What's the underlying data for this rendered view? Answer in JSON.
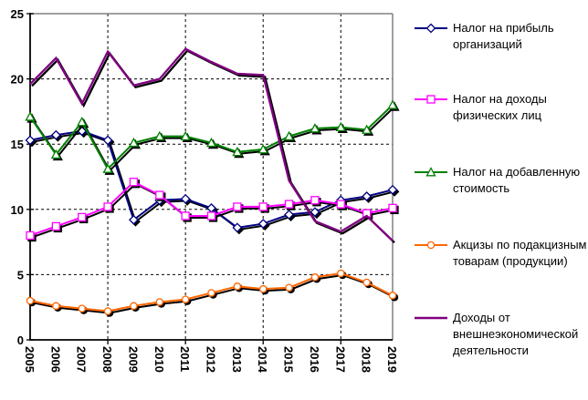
{
  "chart_data": {
    "type": "line",
    "title": "",
    "xlabel": "",
    "ylabel": "",
    "x": [
      2005,
      2006,
      2007,
      2008,
      2009,
      2010,
      2011,
      2012,
      2013,
      2014,
      2015,
      2016,
      2017,
      2018,
      2019
    ],
    "ylim": [
      0,
      25
    ],
    "y_ticks": [
      0,
      5,
      10,
      15,
      20,
      25
    ],
    "x_gridline_years": [
      2008,
      2011,
      2014,
      2017
    ],
    "grid": true,
    "legend_position": "right",
    "series": [
      {
        "name": "Налог на прибыль организаций",
        "color": "#000080",
        "marker": "diamond",
        "values": [
          15.3,
          15.7,
          16.0,
          15.3,
          9.2,
          10.7,
          10.8,
          10.1,
          8.6,
          8.9,
          9.6,
          9.8,
          10.7,
          11.0,
          11.5
        ]
      },
      {
        "name": "Налог на доходы физических лиц",
        "color": "#FF00FF",
        "marker": "square",
        "values": [
          8.0,
          8.7,
          9.4,
          10.2,
          12.1,
          11.1,
          9.5,
          9.5,
          10.2,
          10.2,
          10.4,
          10.7,
          10.4,
          9.7,
          10.1
        ]
      },
      {
        "name": "Налог на добавленную стоимость",
        "color": "#008000",
        "marker": "triangle",
        "values": [
          17.1,
          14.2,
          16.7,
          13.1,
          15.1,
          15.6,
          15.6,
          15.1,
          14.4,
          14.6,
          15.6,
          16.2,
          16.3,
          16.1,
          18.0
        ]
      },
      {
        "name": "Акцизы по подакцизным товарам (продукции)",
        "color": "#FF6600",
        "marker": "circle",
        "values": [
          3.0,
          2.6,
          2.4,
          2.2,
          2.6,
          2.9,
          3.1,
          3.6,
          4.1,
          3.9,
          4.0,
          4.8,
          5.1,
          4.4,
          3.4
        ]
      },
      {
        "name": "Доходы от внешнеэкономической деятельности",
        "color": "#800080",
        "marker": "none",
        "values": [
          19.6,
          21.6,
          18.1,
          22.1,
          19.5,
          20.0,
          22.3,
          21.3,
          20.4,
          20.3,
          12.2,
          9.1,
          8.3,
          9.5,
          7.6
        ]
      }
    ]
  },
  "legend": {
    "items": [
      {
        "label": "Налог на прибыль организаций"
      },
      {
        "label": "Налог на доходы физических лиц"
      },
      {
        "label": "Налог на добавленную стоимость"
      },
      {
        "label": "Акцизы по подакцизным товарам (продукции)"
      },
      {
        "label": "Доходы от внешнеэкономической деятельности"
      }
    ]
  },
  "colors": {
    "frame_gray": "#808080",
    "axis_black": "#000000",
    "plot_background": "#ffffff"
  }
}
